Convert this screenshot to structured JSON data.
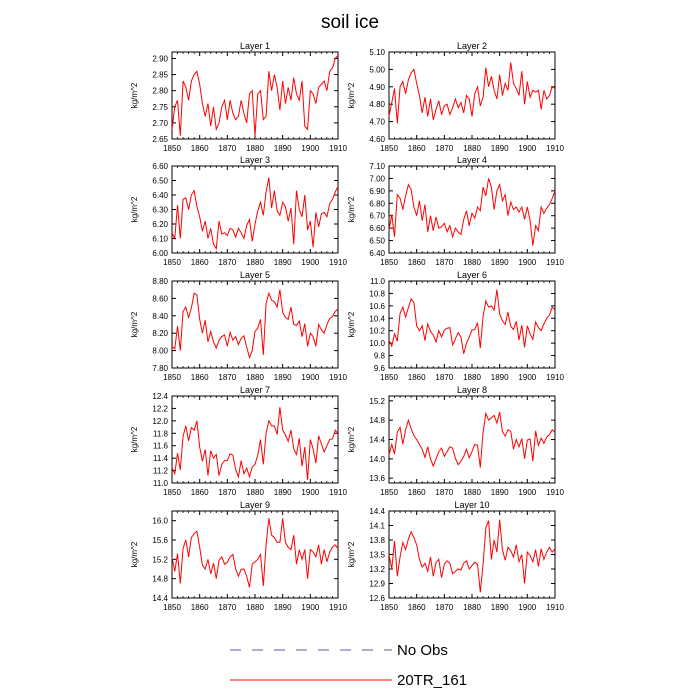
{
  "chart_data": {
    "type": "line",
    "title": "soil ice",
    "ylabel": "kg/m^2",
    "xlim": [
      1850,
      1910
    ],
    "xticks": [
      1850,
      1860,
      1870,
      1880,
      1890,
      1900,
      1910
    ],
    "legend": {
      "placement": "bottom",
      "entries": [
        {
          "name": "No Obs",
          "color": "#5a5ab4",
          "style": "dashed"
        },
        {
          "name": "20TR_161",
          "color": "#ff0000",
          "style": "solid"
        }
      ]
    },
    "panels": [
      {
        "title": "Layer 1",
        "ylim": [
          2.65,
          2.92
        ],
        "yticks": [
          "2.65",
          "2.70",
          "2.75",
          "2.80",
          "2.85",
          "2.90"
        ],
        "values": [
          2.68,
          2.75,
          2.77,
          2.66,
          2.83,
          2.81,
          2.77,
          2.83,
          2.85,
          2.86,
          2.82,
          2.76,
          2.72,
          2.76,
          2.69,
          2.75,
          2.68,
          2.7,
          2.75,
          2.77,
          2.71,
          2.77,
          2.73,
          2.71,
          2.72,
          2.77,
          2.73,
          2.7,
          2.79,
          2.8,
          2.66,
          2.79,
          2.8,
          2.71,
          2.72,
          2.86,
          2.8,
          2.85,
          2.81,
          2.74,
          2.83,
          2.76,
          2.81,
          2.77,
          2.84,
          2.79,
          2.77,
          2.83,
          2.69,
          2.68,
          2.8,
          2.79,
          2.76,
          2.81,
          2.82,
          2.83,
          2.8,
          2.86,
          2.87,
          2.9,
          2.91
        ]
      },
      {
        "title": "Layer 2",
        "ylim": [
          4.6,
          5.1
        ],
        "yticks": [
          "4.60",
          "4.70",
          "4.80",
          "4.90",
          "5.00",
          "5.10"
        ],
        "values": [
          4.73,
          4.81,
          4.89,
          4.69,
          4.9,
          4.93,
          4.86,
          4.94,
          4.98,
          5.0,
          4.92,
          4.85,
          4.75,
          4.84,
          4.73,
          4.83,
          4.71,
          4.77,
          4.82,
          4.74,
          4.79,
          4.8,
          4.74,
          4.78,
          4.83,
          4.78,
          4.81,
          4.75,
          4.85,
          4.83,
          4.73,
          4.86,
          4.9,
          4.79,
          4.84,
          5.01,
          4.9,
          4.96,
          4.88,
          4.83,
          4.97,
          4.85,
          4.92,
          4.88,
          5.04,
          4.92,
          4.89,
          4.85,
          4.99,
          4.8,
          4.93,
          4.84,
          4.88,
          4.87,
          4.88,
          4.77,
          4.88,
          4.83,
          4.85,
          4.9,
          4.89
        ]
      },
      {
        "title": "Layer 3",
        "ylim": [
          6.0,
          6.6
        ],
        "yticks": [
          "6.00",
          "6.10",
          "6.20",
          "6.30",
          "6.40",
          "6.50",
          "6.60"
        ],
        "values": [
          6.14,
          6.1,
          6.33,
          6.1,
          6.37,
          6.38,
          6.3,
          6.4,
          6.43,
          6.32,
          6.25,
          6.15,
          6.22,
          6.1,
          6.17,
          6.06,
          6.03,
          6.22,
          6.13,
          6.14,
          6.12,
          6.17,
          6.16,
          6.11,
          6.17,
          6.14,
          6.1,
          6.19,
          6.23,
          6.08,
          6.2,
          6.29,
          6.35,
          6.26,
          6.42,
          6.52,
          6.31,
          6.43,
          6.29,
          6.26,
          6.35,
          6.32,
          6.22,
          6.31,
          6.06,
          6.43,
          6.3,
          6.25,
          6.4,
          6.16,
          6.22,
          6.04,
          6.28,
          6.18,
          6.27,
          6.28,
          6.25,
          6.34,
          6.37,
          6.42,
          6.46
        ]
      },
      {
        "title": "Layer 4",
        "ylim": [
          6.4,
          7.1
        ],
        "yticks": [
          "6.40",
          "6.50",
          "6.60",
          "6.70",
          "6.80",
          "6.90",
          "7.00",
          "7.10"
        ],
        "values": [
          6.58,
          6.71,
          6.53,
          6.87,
          6.84,
          6.75,
          6.86,
          6.95,
          6.91,
          6.77,
          6.7,
          6.82,
          6.66,
          6.79,
          6.57,
          6.7,
          6.58,
          6.69,
          6.6,
          6.61,
          6.64,
          6.57,
          6.62,
          6.53,
          6.6,
          6.57,
          6.55,
          6.67,
          6.74,
          6.62,
          6.72,
          6.68,
          6.77,
          6.74,
          6.93,
          6.86,
          7.0,
          6.93,
          6.75,
          6.9,
          6.95,
          6.82,
          6.87,
          6.7,
          6.81,
          6.75,
          6.77,
          6.73,
          6.77,
          6.67,
          6.77,
          6.66,
          6.46,
          6.62,
          6.58,
          6.77,
          6.72,
          6.76,
          6.79,
          6.84,
          6.9
        ]
      },
      {
        "title": "Layer 5",
        "ylim": [
          7.8,
          8.8
        ],
        "yticks": [
          "7.80",
          "8.00",
          "8.20",
          "8.40",
          "8.60",
          "8.80"
        ],
        "values": [
          8.05,
          8.02,
          8.28,
          8.0,
          8.45,
          8.5,
          8.38,
          8.49,
          8.66,
          8.64,
          8.36,
          8.2,
          8.35,
          8.1,
          8.22,
          8.1,
          8.03,
          8.12,
          8.16,
          8.18,
          8.05,
          8.21,
          8.12,
          8.16,
          8.07,
          8.14,
          8.17,
          8.04,
          7.92,
          8.0,
          8.22,
          8.26,
          8.36,
          7.95,
          8.54,
          8.66,
          8.58,
          8.56,
          8.5,
          8.7,
          8.44,
          8.38,
          8.36,
          8.5,
          8.3,
          8.29,
          8.34,
          8.16,
          8.31,
          8.05,
          8.2,
          8.16,
          8.05,
          8.3,
          8.24,
          8.2,
          8.3,
          8.37,
          8.39,
          8.45,
          8.48
        ]
      },
      {
        "title": "Layer 6",
        "ylim": [
          9.6,
          11.0
        ],
        "yticks": [
          "9.6",
          "9.8",
          "10.0",
          "10.2",
          "10.4",
          "10.6",
          "10.8",
          "11.0"
        ],
        "values": [
          10.05,
          9.95,
          10.15,
          10.03,
          10.48,
          10.58,
          10.42,
          10.57,
          10.71,
          10.65,
          10.28,
          10.2,
          10.28,
          10.04,
          10.31,
          10.19,
          10.13,
          10.02,
          10.2,
          10.1,
          10.21,
          10.24,
          10.25,
          9.97,
          10.07,
          10.17,
          10.1,
          9.83,
          10.0,
          10.1,
          10.21,
          10.22,
          10.33,
          9.92,
          10.43,
          10.68,
          10.58,
          10.6,
          10.53,
          10.86,
          10.47,
          10.36,
          10.3,
          10.5,
          10.27,
          10.22,
          10.35,
          10.05,
          10.29,
          9.93,
          10.28,
          10.15,
          10.06,
          10.34,
          10.25,
          10.2,
          10.31,
          10.4,
          10.45,
          10.58,
          10.53
        ]
      },
      {
        "title": "Layer 7",
        "ylim": [
          11.0,
          12.4
        ],
        "yticks": [
          "11.0",
          "11.2",
          "11.4",
          "11.6",
          "11.8",
          "12.0",
          "12.2",
          "12.4"
        ],
        "values": [
          11.25,
          11.15,
          11.48,
          11.21,
          11.75,
          11.92,
          11.68,
          11.89,
          11.85,
          12.0,
          11.58,
          11.35,
          11.54,
          11.12,
          11.52,
          11.4,
          11.46,
          11.12,
          11.3,
          11.36,
          11.36,
          11.47,
          11.45,
          11.22,
          11.1,
          11.36,
          11.15,
          11.24,
          11.1,
          11.26,
          11.3,
          11.45,
          11.7,
          11.3,
          11.8,
          12.0,
          11.92,
          11.92,
          11.78,
          12.22,
          11.85,
          11.77,
          11.67,
          11.85,
          11.55,
          11.46,
          11.72,
          11.27,
          11.58,
          11.05,
          11.7,
          11.55,
          11.32,
          11.76,
          11.63,
          11.5,
          11.6,
          11.7,
          11.71,
          11.85,
          11.8
        ]
      },
      {
        "title": "Layer 8",
        "ylim": [
          13.5,
          15.3
        ],
        "yticks": [
          "13.6",
          "14.0",
          "14.4",
          "14.8",
          "15.2"
        ],
        "values": [
          14.08,
          14.3,
          14.1,
          14.55,
          14.65,
          14.3,
          14.6,
          14.8,
          14.62,
          14.48,
          14.4,
          14.3,
          14.2,
          14.03,
          14.25,
          14.0,
          13.85,
          14.0,
          14.15,
          14.22,
          14.05,
          14.15,
          14.25,
          14.22,
          14.01,
          13.88,
          13.95,
          14.05,
          14.2,
          14.02,
          14.15,
          14.3,
          14.28,
          13.82,
          14.55,
          14.94,
          14.8,
          14.85,
          14.9,
          14.74,
          14.97,
          14.56,
          14.47,
          14.6,
          14.57,
          14.2,
          14.4,
          14.25,
          14.42,
          14.0,
          14.39,
          14.41,
          13.95,
          14.58,
          14.28,
          14.43,
          14.32,
          14.45,
          14.5,
          14.6,
          14.55
        ]
      },
      {
        "title": "Layer 9",
        "ylim": [
          14.4,
          16.2
        ],
        "yticks": [
          "14.4",
          "14.8",
          "15.2",
          "15.6",
          "16.0"
        ],
        "values": [
          15.25,
          14.95,
          15.32,
          14.7,
          15.43,
          15.6,
          15.25,
          15.65,
          15.73,
          15.78,
          15.45,
          15.08,
          15.0,
          15.2,
          14.9,
          15.12,
          14.8,
          15.18,
          15.25,
          15.1,
          15.14,
          15.25,
          15.3,
          15.0,
          14.85,
          14.99,
          15.0,
          14.85,
          14.62,
          15.1,
          15.15,
          15.2,
          15.3,
          14.65,
          15.5,
          16.05,
          15.7,
          15.65,
          15.55,
          15.55,
          16.05,
          15.55,
          15.45,
          15.4,
          15.7,
          15.1,
          15.4,
          15.2,
          15.4,
          14.8,
          15.4,
          15.35,
          15.25,
          15.5,
          15.1,
          15.4,
          15.15,
          15.35,
          15.45,
          15.5,
          15.42
        ]
      },
      {
        "title": "Layer 10",
        "ylim": [
          12.6,
          14.4
        ],
        "yticks": [
          "12.6",
          "12.9",
          "13.2",
          "13.5",
          "13.8",
          "14.1",
          "14.4"
        ],
        "values": [
          13.5,
          13.2,
          13.78,
          13.05,
          13.45,
          13.75,
          13.6,
          13.82,
          13.97,
          13.85,
          13.7,
          13.4,
          13.24,
          13.32,
          13.15,
          13.45,
          13.05,
          13.33,
          13.4,
          13.02,
          13.3,
          13.37,
          13.32,
          13.1,
          13.15,
          13.2,
          13.18,
          13.32,
          13.37,
          13.2,
          13.27,
          13.34,
          13.3,
          12.72,
          13.3,
          14.05,
          14.2,
          13.4,
          13.8,
          13.55,
          14.22,
          13.6,
          13.38,
          13.65,
          13.58,
          13.45,
          13.7,
          13.35,
          13.5,
          12.9,
          13.55,
          13.48,
          13.35,
          13.6,
          13.25,
          13.62,
          13.4,
          13.55,
          13.65,
          13.55,
          13.62
        ]
      }
    ]
  }
}
